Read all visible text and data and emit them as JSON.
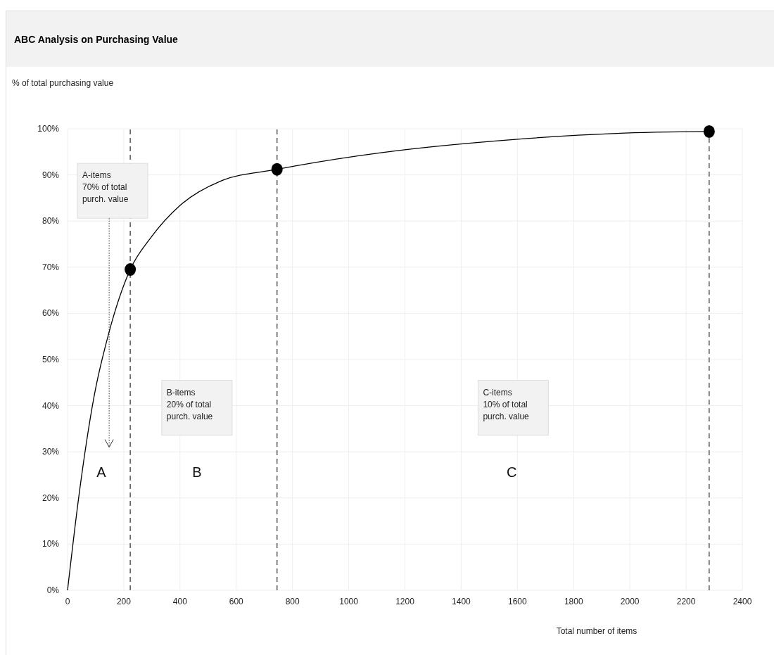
{
  "chart_data": {
    "type": "line",
    "title": "ABC Analysis on Purchasing Value",
    "ylabel": "% of total purchasing value",
    "xlabel": "Total number of items",
    "xlim": [
      0,
      2400
    ],
    "xticks": [
      0,
      200,
      400,
      600,
      800,
      1000,
      1200,
      1400,
      1600,
      1800,
      2000,
      2200,
      2400
    ],
    "ylim": [
      0,
      100
    ],
    "yticks": [
      {
        "value": 0,
        "label": "0%"
      },
      {
        "value": 10,
        "label": "10%"
      },
      {
        "value": 20,
        "label": "20%"
      },
      {
        "value": 30,
        "label": "30%"
      },
      {
        "value": 40,
        "label": "40%"
      },
      {
        "value": 50,
        "label": "50%"
      },
      {
        "value": 60,
        "label": "60%"
      },
      {
        "value": 70,
        "label": "70%"
      },
      {
        "value": 80,
        "label": "80%"
      },
      {
        "value": 90,
        "label": "90%"
      },
      {
        "value": 100,
        "label": "100%"
      }
    ],
    "grid": true,
    "series": [
      {
        "type": "line",
        "color": "#000000",
        "marker": "none",
        "x": [
          0,
          39,
          95,
          148,
          223,
          295,
          408,
          542,
          745,
          1114,
          1594,
          1953,
          2282
        ],
        "values": [
          0,
          19.8,
          42.2,
          56,
          69.5,
          76.3,
          83.8,
          88.6,
          91.2,
          94.8,
          97.7,
          99,
          99.4
        ]
      },
      {
        "type": "scatter",
        "color": "#000000",
        "marker": "circle",
        "x": [
          223,
          745,
          2282
        ],
        "values": [
          69.5,
          91.2,
          99.4
        ]
      }
    ],
    "ref_lines": [
      {
        "axis": "x",
        "value": 223,
        "color": "#555555",
        "line_style": "dashed"
      },
      {
        "axis": "x",
        "value": 745,
        "color": "#555555",
        "line_style": "dashed"
      },
      {
        "axis": "x",
        "value": 2282,
        "color": "#555555",
        "line_style": "dashed"
      }
    ],
    "annotations": [
      "A-items\n70% of total\npurch. value",
      "B-items\n20% of total\npurch. value",
      "C-items\n10% of total\npurch. value",
      "A",
      "B",
      "C"
    ]
  }
}
